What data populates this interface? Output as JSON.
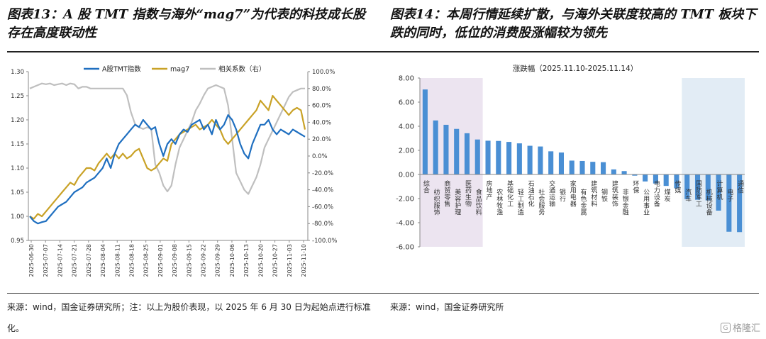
{
  "left_panel": {
    "title": "图表13：A 股 TMT 指数与海外“mag7”为代表的科技成长股存在高度联动性",
    "source": "来源：wind，国金证券研究所；注：以上为股价表现，以 2025 年 6 月 30 日为起始点进行标准化。"
  },
  "right_panel": {
    "title": "图表14：本周行情延续扩散，与海外关联度较高的 TMT 板块下跌的同时，低位的消费股涨幅较为领先",
    "source": "来源：wind，国金证券研究所"
  },
  "watermark": {
    "text": "格隆汇",
    "logo_glyph": "G"
  },
  "chart_data": [
    {
      "type": "line",
      "title": "",
      "legend_position": "top",
      "grid": false,
      "y_left": {
        "lim": [
          0.95,
          1.3
        ],
        "ticks": [
          "1.30",
          "1.25",
          "1.20",
          "1.15",
          "1.10",
          "1.05",
          "1.00",
          "0.95"
        ]
      },
      "y_right": {
        "lim": [
          -100,
          100
        ],
        "ticks": [
          "100.0%",
          "80.0%",
          "60.0%",
          "40.0%",
          "20.0%",
          "0.0%",
          "-20.0%",
          "-40.0%",
          "-60.0%",
          "-80.0%",
          "-100.0%"
        ]
      },
      "x_ticks": [
        "2025-06-30",
        "2025-07-07",
        "2025-07-14",
        "2025-07-21",
        "2025-07-28",
        "2025-08-04",
        "2025-08-11",
        "2025-08-18",
        "2025-08-25",
        "2025-09-01",
        "2025-09-08",
        "2025-09-15",
        "2025-09-22",
        "2025-09-29",
        "2025-10-06",
        "2025-10-13",
        "2025-10-20",
        "2025-10-27",
        "2025-11-03",
        "2025-11-10"
      ],
      "series": [
        {
          "name": "A股TMT指数",
          "axis": "left",
          "color": "#1f6fc0",
          "values": [
            1.0,
            0.99,
            0.985,
            0.988,
            0.99,
            1.0,
            1.01,
            1.02,
            1.025,
            1.03,
            1.04,
            1.05,
            1.055,
            1.06,
            1.07,
            1.075,
            1.08,
            1.09,
            1.1,
            1.12,
            1.1,
            1.13,
            1.15,
            1.16,
            1.17,
            1.18,
            1.19,
            1.185,
            1.2,
            1.19,
            1.18,
            1.185,
            1.15,
            1.125,
            1.15,
            1.16,
            1.15,
            1.17,
            1.18,
            1.175,
            1.19,
            1.195,
            1.2,
            1.18,
            1.19,
            1.17,
            1.2,
            1.18,
            1.19,
            1.21,
            1.2,
            1.18,
            1.15,
            1.13,
            1.12,
            1.15,
            1.17,
            1.19,
            1.19,
            1.2,
            1.18,
            1.17,
            1.18,
            1.175,
            1.17,
            1.18,
            1.175,
            1.17,
            1.165
          ]
        },
        {
          "name": "mag7",
          "axis": "left",
          "color": "#c9a227",
          "values": [
            1.0,
            0.995,
            1.005,
            1.0,
            1.01,
            1.02,
            1.03,
            1.04,
            1.05,
            1.06,
            1.07,
            1.065,
            1.08,
            1.09,
            1.1,
            1.1,
            1.095,
            1.11,
            1.12,
            1.13,
            1.12,
            1.13,
            1.12,
            1.13,
            1.12,
            1.125,
            1.135,
            1.14,
            1.12,
            1.1,
            1.095,
            1.1,
            1.11,
            1.12,
            1.115,
            1.15,
            1.16,
            1.17,
            1.175,
            1.18,
            1.185,
            1.19,
            1.18,
            1.185,
            1.19,
            1.2,
            1.19,
            1.18,
            1.16,
            1.15,
            1.16,
            1.17,
            1.18,
            1.19,
            1.2,
            1.21,
            1.22,
            1.24,
            1.23,
            1.22,
            1.25,
            1.24,
            1.23,
            1.22,
            1.21,
            1.22,
            1.225,
            1.22,
            1.18
          ]
        },
        {
          "name": "相关系数（右）",
          "axis": "right",
          "color": "#bfbfbf",
          "values": [
            80,
            82,
            84,
            86,
            85,
            86,
            84,
            85,
            86,
            84,
            86,
            85,
            80,
            82,
            82,
            80,
            80,
            80,
            80,
            80,
            80,
            80,
            80,
            80,
            72,
            52,
            38,
            34,
            32,
            34,
            32,
            -10,
            -20,
            -35,
            -42,
            -35,
            -10,
            10,
            20,
            30,
            40,
            54,
            62,
            72,
            80,
            82,
            84,
            82,
            80,
            60,
            20,
            -20,
            -30,
            -40,
            -45,
            -35,
            -25,
            -10,
            10,
            20,
            30,
            40,
            50,
            60,
            70,
            76,
            78,
            80,
            80
          ]
        }
      ]
    },
    {
      "type": "bar",
      "title": "涨跌幅（2025.11.10-2025.11.14）",
      "xlabel": "",
      "ylabel": "",
      "ylim": [
        -6,
        8
      ],
      "y_ticks": [
        "8.00",
        "6.00",
        "4.00",
        "2.00",
        "0.00",
        "-2.00",
        "-4.00",
        "-6.00"
      ],
      "bar_color": "#4a8fd4",
      "highlight_left": {
        "color": "#ece4f0",
        "from": 0,
        "to": 5
      },
      "highlight_right": {
        "color": "#e2ecf5",
        "from": 25,
        "to": 30
      },
      "categories": [
        "综合",
        "纺织服饰",
        "商贸零售",
        "美容护理",
        "医药生物",
        "食品饮料",
        "房地产",
        "农林牧渔",
        "基础化工",
        "轻工制造",
        "石油石化",
        "社会服务",
        "交通运输",
        "银行",
        "家用电器",
        "有色金属",
        "建筑材料",
        "钢铁",
        "建筑装饰",
        "非银金融",
        "环保",
        "公用事业",
        "电力设备",
        "煤炭",
        "传媒",
        "汽车",
        "国防军工",
        "机械设备",
        "计算机",
        "电子",
        "通信"
      ],
      "values": [
        7.05,
        4.48,
        4.12,
        3.78,
        3.42,
        2.9,
        2.8,
        2.78,
        2.7,
        2.58,
        2.38,
        2.32,
        1.92,
        1.82,
        1.15,
        1.12,
        1.05,
        1.02,
        0.42,
        0.28,
        -0.1,
        -0.58,
        -0.75,
        -0.95,
        -1.15,
        -2.05,
        -2.1,
        -2.15,
        -3.0,
        -4.75,
        -4.78
      ]
    }
  ]
}
